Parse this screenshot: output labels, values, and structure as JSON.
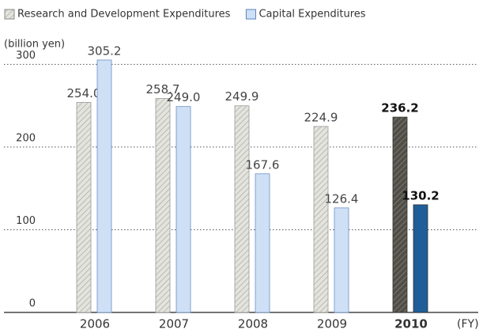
{
  "chart_data": {
    "type": "bar",
    "categories": [
      "2006",
      "2007",
      "2008",
      "2009",
      "2010"
    ],
    "highlight": 4,
    "y_label": "(billion yen)",
    "x_label": "(FY)",
    "ylim": [
      0,
      330
    ],
    "yticks": [
      0,
      100,
      200,
      300
    ],
    "grid": true,
    "series": [
      {
        "name": "Research and Development Expenditures",
        "hatch": true,
        "colors": [
          "#e4e4de",
          "#e4e4de",
          "#e4e4de",
          "#e4e4de",
          "#4f4f47"
        ],
        "values": [
          254.0,
          258.7,
          249.9,
          224.9,
          236.2
        ],
        "value_labels": [
          "254.0",
          "258.7",
          "249.9",
          "224.9",
          "236.2"
        ]
      },
      {
        "name": "Capital Expenditures",
        "hatch": false,
        "colors": [
          "#cfe0f6",
          "#cfe0f6",
          "#cfe0f6",
          "#cfe0f6",
          "#1f5e98"
        ],
        "values": [
          305.2,
          249.0,
          167.6,
          126.4,
          130.2
        ],
        "value_labels": [
          "305.2",
          "249.0",
          "167.6",
          "126.4",
          "130.2"
        ]
      }
    ]
  }
}
